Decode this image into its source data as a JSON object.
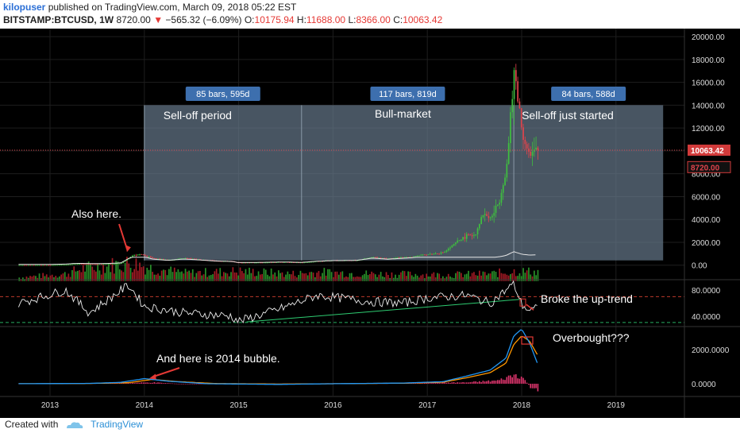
{
  "header": {
    "author": "kilopuser",
    "published": "published on TradingView.com, March 09, 2018 05:22 EST",
    "symbol": "BITSTAMP:BTCUSD, 1W",
    "last": "8720.00",
    "change": "−565.32 (−6.09%)",
    "o_label": "O:",
    "o_value": "10175.94",
    "h_label": "H:",
    "h_value": "11688.00",
    "l_label": "L:",
    "l_value": "8366.00",
    "c_label": "C:",
    "c_value": "10063.42"
  },
  "footer": {
    "created_with": "Created with",
    "brand": "TradingView"
  },
  "colors": {
    "up": "#3fbf3f",
    "down": "#e0444c",
    "box": "#6a7e90",
    "badge": "#3d6fae",
    "price_line": "#e0444c",
    "ema_fast": "#2196f3",
    "ema_slow": "#ff9800"
  },
  "chart_data": [
    {
      "type": "candlestick",
      "panel": "price",
      "y_ticks": [
        "20000.00",
        "18000.00",
        "16000.00",
        "14000.00",
        "12000.00",
        "10000.00",
        "8000.00",
        "6000.00",
        "4000.00",
        "2000.00",
        "0.00"
      ],
      "ylim": [
        -1200,
        20700
      ],
      "x_ticks": [
        "2013",
        "2014",
        "2015",
        "2016",
        "2017",
        "2018",
        "2019"
      ],
      "price_labels": [
        {
          "text": "10063.42",
          "value": 10063.42
        },
        {
          "text": "8720.00",
          "value": 8720
        }
      ],
      "ranges": [
        {
          "badge": "85 bars, 595d",
          "label": "Sell-off period",
          "from": "2014-01",
          "to": "2015-09",
          "high": 14000
        },
        {
          "badge": "117 bars, 819d",
          "label": "Bull-market",
          "from": "2015-09",
          "to": "2017-12",
          "high": 14000
        },
        {
          "badge": "84 bars, 588d",
          "label": "Sell-off just started",
          "from": "2017-12",
          "to": "2019-07",
          "high": 14000
        }
      ],
      "annotations": [
        {
          "text": "Also here.",
          "target": "2013-12",
          "value": 1150
        }
      ],
      "price_path": [
        [
          "2012-09",
          11
        ],
        [
          "2013-01",
          13
        ],
        [
          "2013-03",
          45
        ],
        [
          "2013-04",
          110
        ],
        [
          "2013-05",
          120
        ],
        [
          "2013-07",
          90
        ],
        [
          "2013-09",
          130
        ],
        [
          "2013-10",
          170
        ],
        [
          "2013-11",
          650
        ],
        [
          "2013-12",
          1000
        ],
        [
          "2014-01",
          850
        ],
        [
          "2014-02",
          600
        ],
        [
          "2014-04",
          450
        ],
        [
          "2014-06",
          600
        ],
        [
          "2014-08",
          500
        ],
        [
          "2014-10",
          380
        ],
        [
          "2014-12",
          330
        ],
        [
          "2015-01",
          220
        ],
        [
          "2015-04",
          240
        ],
        [
          "2015-07",
          280
        ],
        [
          "2015-09",
          235
        ],
        [
          "2015-11",
          350
        ],
        [
          "2016-01",
          420
        ],
        [
          "2016-04",
          440
        ],
        [
          "2016-06",
          700
        ],
        [
          "2016-08",
          580
        ],
        [
          "2016-11",
          740
        ],
        [
          "2017-01",
          950
        ],
        [
          "2017-03",
          1100
        ],
        [
          "2017-05",
          2200
        ],
        [
          "2017-06",
          2600
        ],
        [
          "2017-07",
          2700
        ],
        [
          "2017-08",
          4500
        ],
        [
          "2017-09",
          4100
        ],
        [
          "2017-10",
          5500
        ],
        [
          "2017-11",
          8500
        ],
        [
          "2017-12",
          17000
        ],
        [
          "2018-01",
          11500
        ],
        [
          "2018-02",
          9500
        ],
        [
          "2018-03",
          10063
        ]
      ],
      "volume_path": [
        [
          "2012-09",
          0.2
        ],
        [
          "2013-03",
          0.4
        ],
        [
          "2013-05",
          0.7
        ],
        [
          "2013-11",
          1.0
        ],
        [
          "2013-12",
          0.95
        ],
        [
          "2014-02",
          0.7
        ],
        [
          "2014-06",
          0.45
        ],
        [
          "2014-10",
          0.5
        ],
        [
          "2015-01",
          0.55
        ],
        [
          "2015-08",
          0.4
        ],
        [
          "2015-11",
          0.5
        ],
        [
          "2016-06",
          0.4
        ],
        [
          "2017-03",
          0.35
        ],
        [
          "2017-09",
          0.4
        ],
        [
          "2017-12",
          0.55
        ],
        [
          "2018-03",
          0.5
        ]
      ]
    },
    {
      "type": "line",
      "panel": "rsi",
      "y_ticks": [
        "80.0000",
        "40.0000"
      ],
      "ylim": [
        25,
        95
      ],
      "levels": [
        70,
        30
      ],
      "annotations": [
        {
          "text": "Broke the up-trend",
          "target": "2018-01",
          "value": 64
        }
      ],
      "trendline": [
        [
          "2015-02",
          31
        ],
        [
          "2018-01",
          66
        ]
      ],
      "rsi_path": [
        [
          "2012-09",
          60
        ],
        [
          "2013-03",
          80
        ],
        [
          "2013-06",
          45
        ],
        [
          "2013-11",
          88
        ],
        [
          "2014-01",
          55
        ],
        [
          "2014-06",
          45
        ],
        [
          "2014-12",
          40
        ],
        [
          "2015-01",
          32
        ],
        [
          "2015-06",
          50
        ],
        [
          "2015-11",
          72
        ],
        [
          "2016-06",
          62
        ],
        [
          "2016-10",
          60
        ],
        [
          "2017-01",
          68
        ],
        [
          "2017-06",
          72
        ],
        [
          "2017-09",
          60
        ],
        [
          "2017-12",
          90
        ],
        [
          "2018-01",
          58
        ],
        [
          "2018-02",
          48
        ],
        [
          "2018-03",
          52
        ]
      ]
    },
    {
      "type": "line",
      "panel": "macd",
      "y_ticks": [
        "2000.0000",
        "0.0000"
      ],
      "ylim": [
        -700,
        3300
      ],
      "annotations": [
        {
          "text": "And here is 2014 bubble.",
          "target": "2014-01",
          "value": 300
        },
        {
          "text": "Overbought???",
          "target": "2018-01",
          "value": 2600
        }
      ],
      "macd_path": [
        [
          "2012-09",
          0
        ],
        [
          "2013-06",
          20
        ],
        [
          "2013-10",
          80
        ],
        [
          "2014-01",
          300
        ],
        [
          "2014-04",
          150
        ],
        [
          "2014-09",
          0
        ],
        [
          "2015-06",
          -40
        ],
        [
          "2016-01",
          0
        ],
        [
          "2016-10",
          40
        ],
        [
          "2017-03",
          120
        ],
        [
          "2017-06",
          450
        ],
        [
          "2017-09",
          800
        ],
        [
          "2017-11",
          1500
        ],
        [
          "2017-12",
          2800
        ],
        [
          "2018-01",
          3200
        ],
        [
          "2018-02",
          2400
        ],
        [
          "2018-03",
          1200
        ]
      ],
      "signal_path": [
        [
          "2012-09",
          0
        ],
        [
          "2013-06",
          15
        ],
        [
          "2013-11",
          60
        ],
        [
          "2014-02",
          250
        ],
        [
          "2014-05",
          130
        ],
        [
          "2014-10",
          10
        ],
        [
          "2015-06",
          -20
        ],
        [
          "2016-01",
          0
        ],
        [
          "2016-10",
          30
        ],
        [
          "2017-03",
          90
        ],
        [
          "2017-06",
          350
        ],
        [
          "2017-09",
          650
        ],
        [
          "2017-11",
          1200
        ],
        [
          "2017-12",
          2300
        ],
        [
          "2018-01",
          2800
        ],
        [
          "2018-02",
          2500
        ],
        [
          "2018-03",
          1700
        ]
      ],
      "hist_path": [
        [
          "2012-09",
          0
        ],
        [
          "2013-11",
          50
        ],
        [
          "2014-02",
          80
        ],
        [
          "2014-06",
          -20
        ],
        [
          "2015-06",
          0
        ],
        [
          "2017-06",
          80
        ],
        [
          "2017-10",
          200
        ],
        [
          "2017-12",
          550
        ],
        [
          "2018-01",
          420
        ],
        [
          "2018-02",
          -200
        ],
        [
          "2018-03",
          -500
        ]
      ]
    }
  ]
}
